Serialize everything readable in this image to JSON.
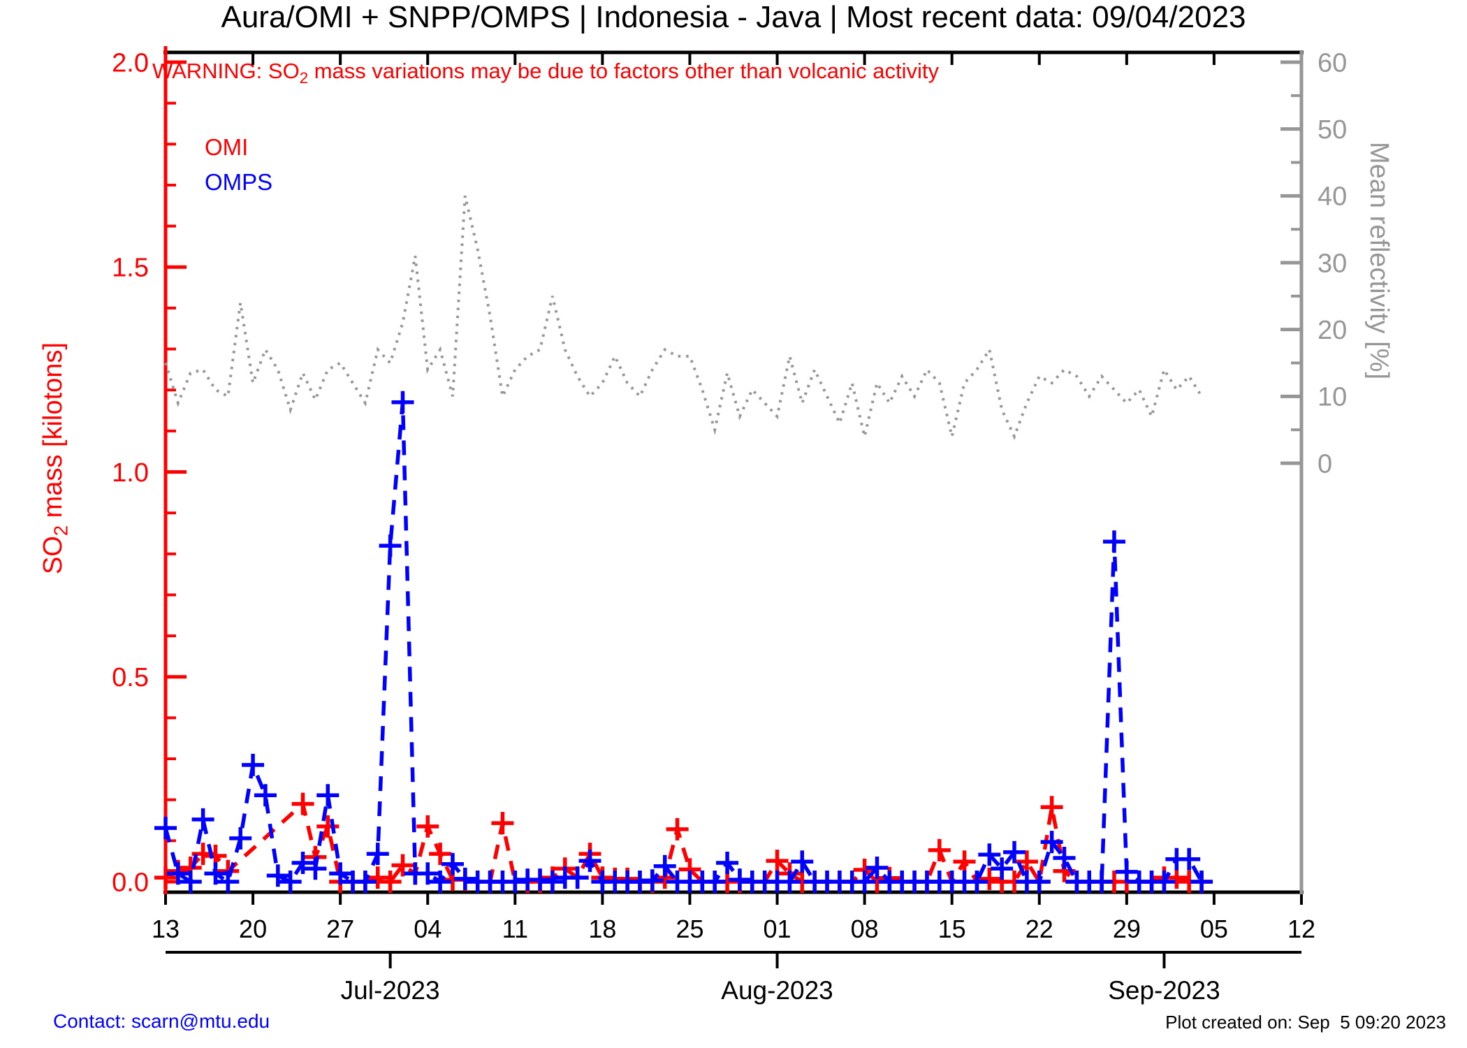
{
  "title": "Aura/OMI + SNPP/OMPS | Indonesia - Java | Most recent data: 09/04/2023",
  "warning": {
    "prefix": "WARNING: SO",
    "sub": "2",
    "rest": " mass variations may be due to factors other than volcanic activity"
  },
  "legend": {
    "omi": "OMI",
    "omps": "OMPS"
  },
  "left_axis": {
    "title_prefix": "SO",
    "title_sub": "2",
    "title_rest": " mass [kilotons]",
    "tick_labels": [
      "2.0",
      "1.5",
      "1.0",
      "0.5",
      "0.0"
    ],
    "tick_values": [
      2.0,
      1.5,
      1.0,
      0.5,
      0.0
    ]
  },
  "right_axis": {
    "title": "Mean reflectivity [%]",
    "tick_labels": [
      "60",
      "50",
      "40",
      "30",
      "20",
      "10",
      "0"
    ],
    "tick_values": [
      60,
      50,
      40,
      30,
      20,
      10,
      0
    ]
  },
  "footer": {
    "contact": "Contact: scarn@mtu.edu",
    "created": "Plot created on: Sep  5 09:20 2023"
  },
  "colors": {
    "omi": "#ff0000",
    "omps": "#0000ff",
    "reflectivity": "#969696",
    "axis_black": "#000000"
  },
  "chart_data": {
    "type": "line",
    "title": "Aura/OMI + SNPP/OMPS | Indonesia - Java | Most recent data: 09/04/2023",
    "start_date": "2023-06-13",
    "end_date": "2023-09-04",
    "x_axis_span_days": 91,
    "x_tick_days": [
      0,
      7,
      14,
      21,
      28,
      35,
      42,
      49,
      56,
      63,
      70,
      77,
      84,
      91
    ],
    "x_tick_labels": [
      "13",
      "20",
      "27",
      "04",
      "11",
      "18",
      "25",
      "01",
      "08",
      "15",
      "22",
      "29",
      "05",
      "12"
    ],
    "month_ticks": [
      {
        "label": "Jul-2023",
        "day": 18
      },
      {
        "label": "Aug-2023",
        "day": 49
      },
      {
        "label": "Sep-2023",
        "day": 80
      }
    ],
    "y_left": {
      "label": "SO2 mass [kilotons]",
      "range": [
        0,
        2
      ],
      "major_step": 0.5,
      "minor_step": 0.1
    },
    "y_right": {
      "label": "Mean reflectivity [%]",
      "range": [
        0,
        60
      ],
      "major_step": 10,
      "minor_step": 5
    },
    "series": [
      {
        "name": "OMI",
        "axis": "left",
        "color": "#ff0000",
        "style": "dashed-plus",
        "values": [
          0.01,
          0.026,
          0.034,
          0.068,
          0.063,
          0.026,
          null,
          null,
          null,
          null,
          null,
          0.19,
          0.06,
          0.135,
          0,
          0,
          0,
          0.01,
          0,
          0.04,
          0.02,
          0.135,
          0.068,
          0.005,
          0.005,
          0,
          0,
          0.143,
          0,
          0,
          0,
          0.01,
          0.032,
          0.01,
          0.068,
          0.01,
          0.007,
          0.007,
          0,
          0,
          0.01,
          0.128,
          0.03,
          0,
          0,
          0,
          0,
          0,
          0,
          0.051,
          0.02,
          0,
          0,
          0,
          0,
          0,
          0.029,
          0,
          0.009,
          0,
          0,
          0,
          0.077,
          0,
          0.049,
          0,
          0.007,
          0,
          0,
          0.049,
          0,
          0.182,
          0.026,
          0,
          0,
          0,
          0,
          0,
          0,
          0,
          0.01,
          0.01,
          0,
          0
        ]
      },
      {
        "name": "OMPS",
        "axis": "left",
        "color": "#0000ff",
        "style": "dashed-plus",
        "values": [
          0.131,
          0.02,
          0,
          0.152,
          0.02,
          0,
          0.106,
          0.285,
          0.211,
          0.015,
          0,
          0.046,
          0.032,
          0.211,
          0.02,
          0,
          0,
          0.068,
          0.82,
          1.17,
          0.02,
          0.02,
          0,
          0.043,
          0.007,
          0,
          0,
          0,
          0,
          0.005,
          0.005,
          0,
          0.01,
          0.01,
          0.051,
          0,
          0,
          0,
          0,
          0.003,
          0.038,
          0,
          0,
          0,
          0,
          0.046,
          0.005,
          0,
          0,
          0,
          0,
          0.049,
          0,
          0,
          0,
          0,
          0,
          0.034,
          0,
          0,
          0,
          0,
          0,
          0,
          0,
          0,
          0.066,
          0.032,
          0.072,
          0,
          0,
          0.097,
          0.058,
          0,
          0,
          0,
          0.83,
          0.024,
          0,
          0,
          0,
          0.055,
          0.055,
          0
        ]
      },
      {
        "name": "Mean reflectivity",
        "axis": "right",
        "color": "#969696",
        "style": "dotted",
        "values": [
          15,
          9,
          13.5,
          14,
          11,
          10,
          24,
          12,
          17,
          14,
          8,
          13.5,
          9.5,
          14,
          15,
          12,
          9,
          17,
          15,
          21,
          31,
          14,
          17,
          10,
          40,
          32,
          22,
          10,
          14,
          16,
          17,
          25,
          17,
          13,
          10,
          12,
          16,
          12,
          10,
          14,
          17,
          16,
          16,
          11,
          5,
          13.5,
          7,
          11,
          9,
          7,
          16,
          9,
          14,
          10,
          6,
          12,
          4,
          12,
          9,
          13,
          10,
          14,
          12,
          4,
          12,
          14,
          17,
          8,
          4,
          9,
          13,
          12,
          14,
          13,
          10,
          13,
          11,
          9,
          11,
          7,
          14,
          11,
          13,
          10
        ]
      }
    ]
  }
}
